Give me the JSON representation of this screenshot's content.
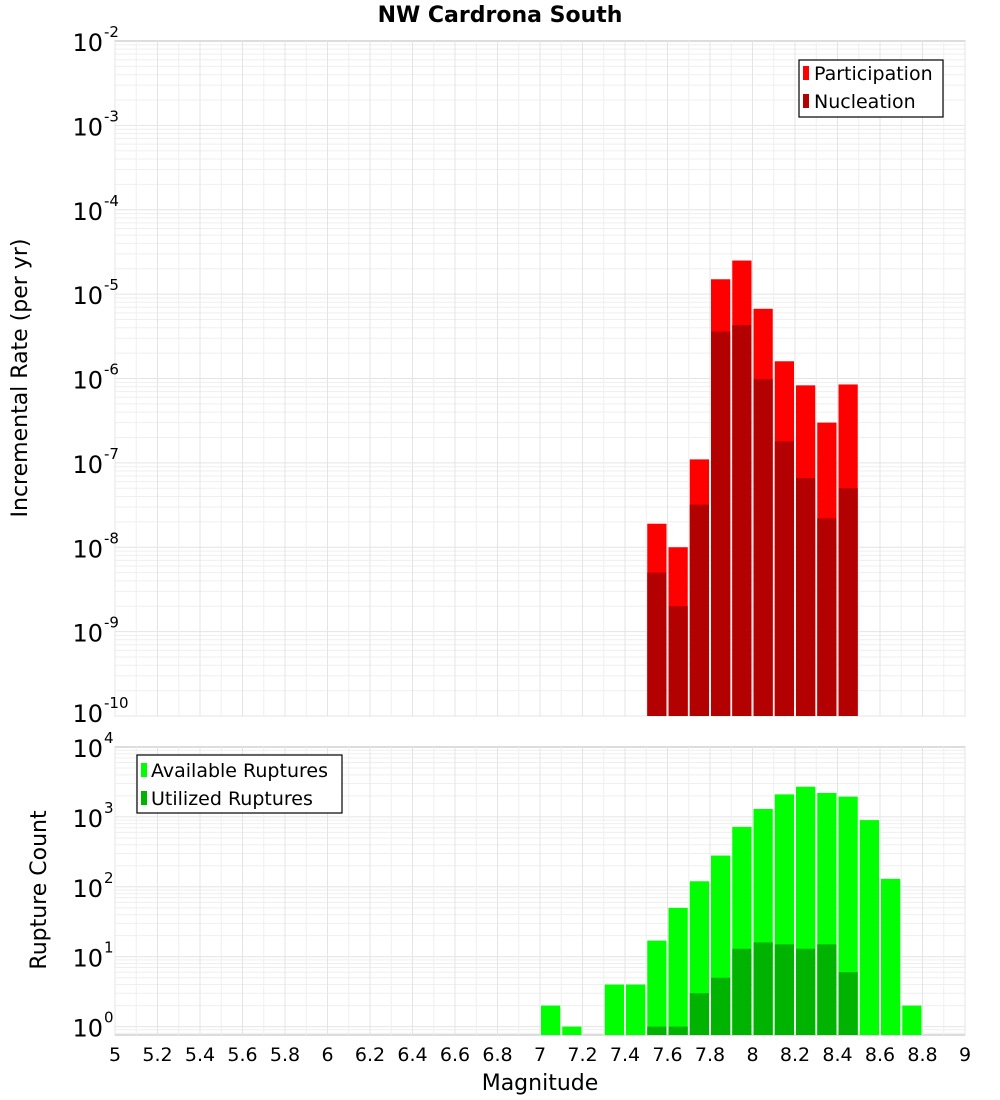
{
  "chart_data": {
    "title": "NW Cardrona South",
    "xlabel": "Magnitude",
    "xlim": [
      5,
      9
    ],
    "x_ticks": [
      "5",
      "5.2",
      "5.4",
      "5.6",
      "5.8",
      "6",
      "6.2",
      "6.4",
      "6.6",
      "6.8",
      "7",
      "7.2",
      "7.4",
      "7.6",
      "7.8",
      "8",
      "8.2",
      "8.4",
      "8.6",
      "8.8",
      "9"
    ],
    "bin_width": 0.1,
    "panels": [
      {
        "type": "bar",
        "scale": "log",
        "ylabel": "Incremental Rate (per yr)",
        "ylim_exp": [
          -10,
          -2
        ],
        "y_tick_exponents": [
          "-10",
          "-9",
          "-8",
          "-7",
          "-6",
          "-5",
          "-4",
          "-3",
          "-2"
        ],
        "grid": true,
        "legend_position": "top-right",
        "series": [
          {
            "name": "Participation",
            "color": "#ff0000",
            "x": [
              7.55,
              7.65,
              7.75,
              7.85,
              7.95,
              8.05,
              8.15,
              8.25,
              8.35,
              8.45
            ],
            "values": [
              1.9e-08,
              1e-08,
              1.1e-07,
              1.5e-05,
              2.5e-05,
              6.7e-06,
              1.6e-06,
              8.3e-07,
              3e-07,
              8.5e-07
            ]
          },
          {
            "name": "Nucleation",
            "color": "#b30000",
            "x": [
              7.55,
              7.65,
              7.75,
              7.85,
              7.95,
              8.05,
              8.15,
              8.25,
              8.35,
              8.45
            ],
            "values": [
              5e-09,
              2e-09,
              3.2e-08,
              3.6e-06,
              4.3e-06,
              9.8e-07,
              1.8e-07,
              6.6e-08,
              2.2e-08,
              5e-08
            ]
          }
        ]
      },
      {
        "type": "bar",
        "scale": "log",
        "ylabel": "Rupture Count",
        "ylim_exp": [
          -0.12,
          4
        ],
        "y_tick_exponents": [
          "0",
          "1",
          "2",
          "3",
          "4"
        ],
        "grid": true,
        "legend_position": "top-left",
        "series": [
          {
            "name": "Available Ruptures",
            "color": "#00ff00",
            "x": [
              7.05,
              7.15,
              7.35,
              7.45,
              7.55,
              7.65,
              7.75,
              7.85,
              7.95,
              8.05,
              8.15,
              8.25,
              8.35,
              8.45,
              8.55,
              8.65,
              8.75
            ],
            "values": [
              2,
              1,
              4,
              4,
              17,
              50,
              120,
              280,
              720,
              1300,
              2100,
              2700,
              2200,
              1950,
              900,
              130,
              2
            ]
          },
          {
            "name": "Utilized Ruptures",
            "color": "#00b300",
            "x": [
              7.55,
              7.65,
              7.75,
              7.85,
              7.95,
              8.05,
              8.15,
              8.25,
              8.35,
              8.45
            ],
            "values": [
              1,
              1,
              3,
              5,
              13,
              16,
              15,
              13,
              15,
              6
            ]
          }
        ]
      }
    ]
  }
}
